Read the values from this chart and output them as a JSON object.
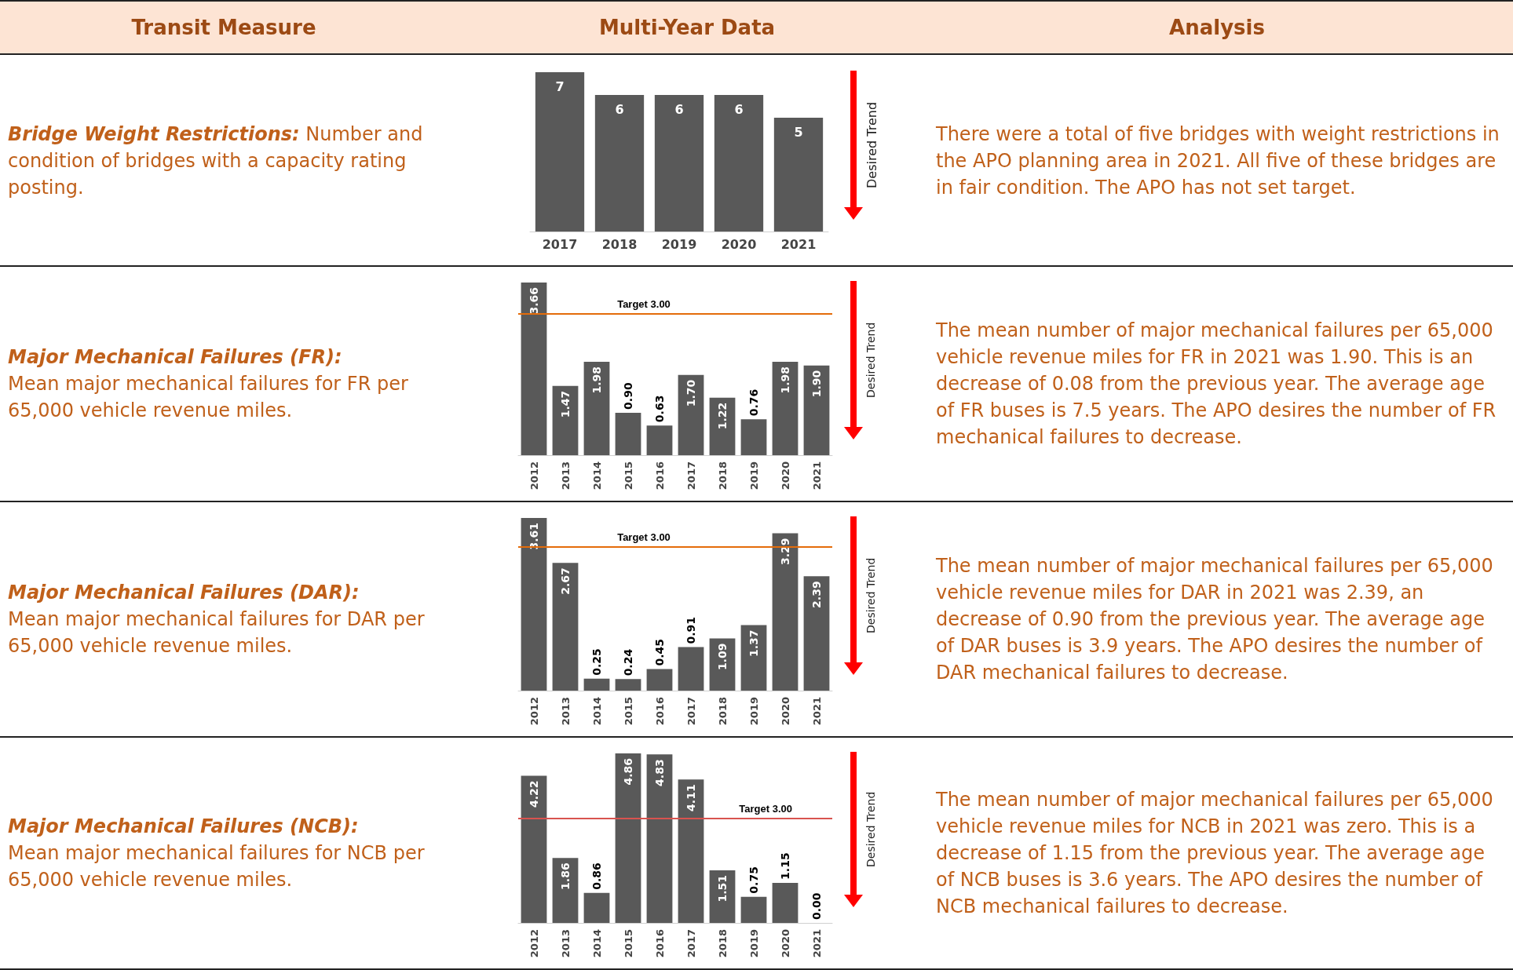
{
  "chart_data": [
    {
      "type": "other",
      "annotations": [
        "Transit Measure",
        "Multi-Year Data",
        "Analysis"
      ]
    },
    {
      "type": "bar",
      "categories": [
        "2017",
        "2018",
        "2019",
        "2020",
        "2021"
      ],
      "values": [
        7,
        6,
        6,
        6,
        5
      ],
      "value_labels": [
        "7",
        "6",
        "6",
        "6",
        "5"
      ],
      "color": "#595959",
      "annotations": [
        "Bridge Weight Restrictions:",
        "Number and condition of bridges with a capacity rating posting.",
        "There were a total of five bridges with weight restrictions in the APO planning area in 2021. All five of these bridges are in fair condition. The APO has not set target.",
        "Desired Trend"
      ]
    },
    {
      "type": "bar",
      "categories": [
        "2012",
        "2013",
        "2014",
        "2015",
        "2016",
        "2017",
        "2018",
        "2019",
        "2020",
        "2021"
      ],
      "values": [
        3.66,
        1.47,
        1.98,
        0.9,
        0.63,
        1.7,
        1.22,
        0.76,
        1.98,
        1.9
      ],
      "value_labels": [
        "3.66",
        "1.47",
        "1.98",
        "0.90",
        "0.63",
        "1.70",
        "1.22",
        "0.76",
        "1.98",
        "1.90"
      ],
      "color": "#595959",
      "ref_lines": [
        {
          "axis": "y",
          "value": 3,
          "label": "Target 3.00",
          "color": "#e46c0a"
        }
      ],
      "annotations": [
        "Major Mechanical Failures (FR):",
        "Mean major mechanical failures for FR per 65,000 vehicle revenue miles.",
        "The mean number of major mechanical failures per 65,000 vehicle revenue miles for FR in 2021 was 1.90. This is an decrease of 0.08 from the previous year. The average age of FR buses is 7.5 years. The APO desires the number of FR mechanical failures to decrease.",
        "Desired Trend"
      ]
    },
    {
      "type": "bar",
      "categories": [
        "2012",
        "2013",
        "2014",
        "2015",
        "2016",
        "2017",
        "2018",
        "2019",
        "2020",
        "2021"
      ],
      "values": [
        3.61,
        2.67,
        0.25,
        0.24,
        0.45,
        0.91,
        1.09,
        1.37,
        3.29,
        2.39
      ],
      "value_labels": [
        "3.61",
        "2.67",
        "0.25",
        "0.24",
        "0.45",
        "0.91",
        "1.09",
        "1.37",
        "3.29",
        "2.39"
      ],
      "color": "#595959",
      "ref_lines": [
        {
          "axis": "y",
          "value": 3,
          "label": "Target 3.00",
          "color": "#e46c0a"
        }
      ],
      "annotations": [
        "Major Mechanical Failures (DAR):",
        "Mean major mechanical failures for DAR per 65,000 vehicle revenue miles.",
        "The mean number of major mechanical failures per 65,000 vehicle revenue miles for DAR in 2021 was 2.39, an decrease of 0.90 from the previous year. The average age of DAR buses is 3.9 years. The APO desires the number of DAR mechanical failures to decrease.",
        "Desired Trend"
      ]
    },
    {
      "type": "bar",
      "categories": [
        "2012",
        "2013",
        "2014",
        "2015",
        "2016",
        "2017",
        "2018",
        "2019",
        "2020",
        "2021"
      ],
      "values": [
        4.22,
        1.86,
        0.86,
        4.86,
        4.83,
        4.11,
        1.51,
        0.75,
        1.15,
        0
      ],
      "value_labels": [
        "4.22",
        "1.86",
        "0.86",
        "4.86",
        "4.83",
        "4.11",
        "1.51",
        "0.75",
        "1.15",
        "0.00"
      ],
      "color": "#595959",
      "ref_lines": [
        {
          "axis": "y",
          "value": 3,
          "label": "Target 3.00",
          "color": "#d9534f"
        }
      ],
      "annotations": [
        "Major Mechanical Failures (NCB):",
        "Mean major mechanical failures for NCB per 65,000 vehicle revenue miles.",
        "The mean number of major mechanical failures per 65,000 vehicle revenue miles for NCB in 2021 was zero. This is a decrease of 1.15 from the previous year. The average age of NCB buses is 3.6 years. The APO desires the number of NCB mechanical failures to decrease.",
        "Desired Trend"
      ]
    }
  ]
}
